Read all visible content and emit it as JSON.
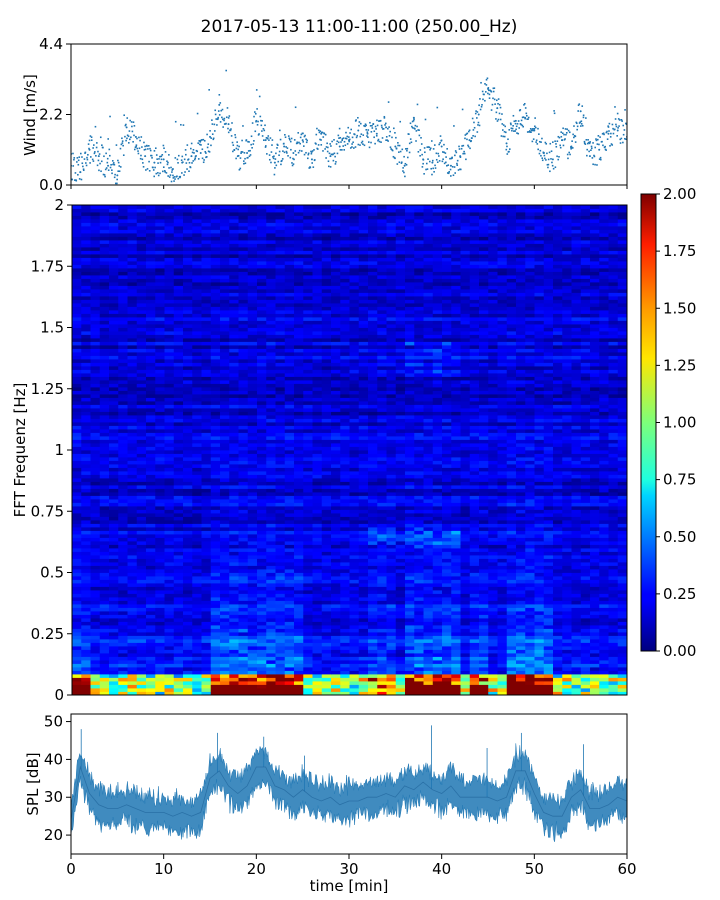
{
  "title": "2017-05-13 11:00-11:00 (250.00_Hz)",
  "chart_data": [
    {
      "id": "wind",
      "type": "scatter",
      "ylabel": "Wind [m/s]",
      "xlabel": "",
      "xlim": [
        0,
        60
      ],
      "ylim": [
        0.0,
        4.4
      ],
      "yticks": [
        "0.0",
        "2.2",
        "4.4"
      ],
      "color": "#1f77b4",
      "points": [
        [
          0,
          0.6
        ],
        [
          1,
          0.4
        ],
        [
          2,
          1.1
        ],
        [
          3,
          0.9
        ],
        [
          4,
          0.6
        ],
        [
          5,
          0.3
        ],
        [
          6,
          1.8
        ],
        [
          7,
          1.5
        ],
        [
          8,
          0.9
        ],
        [
          9,
          0.7
        ],
        [
          10,
          0.8
        ],
        [
          11,
          0.5
        ],
        [
          12,
          0.7
        ],
        [
          13,
          0.9
        ],
        [
          14,
          1.0
        ],
        [
          15,
          1.5
        ],
        [
          16,
          2.5
        ],
        [
          17,
          1.9
        ],
        [
          18,
          0.9
        ],
        [
          19,
          1.0
        ],
        [
          20,
          2.0
        ],
        [
          21,
          1.4
        ],
        [
          22,
          0.7
        ],
        [
          23,
          1.2
        ],
        [
          24,
          1.0
        ],
        [
          25,
          1.4
        ],
        [
          26,
          0.8
        ],
        [
          27,
          1.6
        ],
        [
          28,
          0.9
        ],
        [
          29,
          1.2
        ],
        [
          30,
          1.4
        ],
        [
          31,
          1.7
        ],
        [
          32,
          1.6
        ],
        [
          33,
          1.6
        ],
        [
          34,
          1.8
        ],
        [
          35,
          1.2
        ],
        [
          36,
          0.6
        ],
        [
          37,
          2.1
        ],
        [
          38,
          0.8
        ],
        [
          39,
          0.7
        ],
        [
          40,
          1.2
        ],
        [
          41,
          0.6
        ],
        [
          42,
          0.9
        ],
        [
          43,
          1.4
        ],
        [
          44,
          2.2
        ],
        [
          45,
          3.0
        ],
        [
          46,
          2.4
        ],
        [
          47,
          1.3
        ],
        [
          48,
          2.0
        ],
        [
          49,
          2.1
        ],
        [
          50,
          1.7
        ],
        [
          51,
          1.0
        ],
        [
          52,
          0.8
        ],
        [
          53,
          1.4
        ],
        [
          54,
          1.2
        ],
        [
          55,
          2.3
        ],
        [
          56,
          0.9
        ],
        [
          57,
          1.1
        ],
        [
          58,
          1.6
        ],
        [
          59,
          1.7
        ],
        [
          60,
          1.5
        ]
      ]
    },
    {
      "id": "spectrogram",
      "type": "heatmap",
      "ylabel": "FFT Frequenz [Hz]",
      "xlabel": "",
      "xlim": [
        0,
        60
      ],
      "ylim": [
        0,
        2
      ],
      "yticks": [
        "0",
        "0.25",
        "0.5",
        "0.75",
        "1",
        "1.25",
        "1.5",
        "1.75",
        "2"
      ],
      "colormap": "jet",
      "colorbar": {
        "range": [
          0.0,
          2.0
        ],
        "ticks": [
          "0.00",
          "0.25",
          "0.50",
          "0.75",
          "1.00",
          "1.25",
          "1.50",
          "1.75",
          "2.00"
        ]
      }
    },
    {
      "id": "spl",
      "type": "area",
      "ylabel": "SPL [dB]",
      "xlabel": "time [min]",
      "xlim": [
        0,
        60
      ],
      "ylim": [
        15,
        52
      ],
      "yticks": [
        "20",
        "30",
        "40",
        "50"
      ],
      "xticks": [
        "0",
        "10",
        "20",
        "30",
        "40",
        "50",
        "60"
      ],
      "color": "#1f77b4",
      "mean": [
        [
          0,
          24
        ],
        [
          1,
          38
        ],
        [
          2,
          31
        ],
        [
          3,
          28
        ],
        [
          4,
          27
        ],
        [
          5,
          27
        ],
        [
          6,
          28
        ],
        [
          7,
          27
        ],
        [
          8,
          26
        ],
        [
          9,
          26
        ],
        [
          10,
          26
        ],
        [
          11,
          25
        ],
        [
          12,
          26
        ],
        [
          13,
          25
        ],
        [
          14,
          26
        ],
        [
          15,
          35
        ],
        [
          16,
          37
        ],
        [
          17,
          33
        ],
        [
          18,
          31
        ],
        [
          19,
          33
        ],
        [
          20,
          38
        ],
        [
          21,
          38
        ],
        [
          22,
          33
        ],
        [
          23,
          32
        ],
        [
          24,
          30
        ],
        [
          25,
          32
        ],
        [
          26,
          30
        ],
        [
          27,
          29
        ],
        [
          28,
          30
        ],
        [
          29,
          28
        ],
        [
          30,
          29
        ],
        [
          31,
          29
        ],
        [
          32,
          30
        ],
        [
          33,
          30
        ],
        [
          34,
          31
        ],
        [
          35,
          30
        ],
        [
          36,
          33
        ],
        [
          37,
          32
        ],
        [
          38,
          34
        ],
        [
          39,
          32
        ],
        [
          40,
          31
        ],
        [
          41,
          33
        ],
        [
          42,
          30
        ],
        [
          43,
          30
        ],
        [
          44,
          30
        ],
        [
          45,
          30
        ],
        [
          46,
          29
        ],
        [
          47,
          30
        ],
        [
          48,
          37
        ],
        [
          49,
          37
        ],
        [
          50,
          31
        ],
        [
          51,
          26
        ],
        [
          52,
          25
        ],
        [
          53,
          25
        ],
        [
          54,
          30
        ],
        [
          55,
          32
        ],
        [
          56,
          27
        ],
        [
          57,
          27
        ],
        [
          58,
          28
        ],
        [
          59,
          30
        ],
        [
          60,
          29
        ]
      ]
    }
  ]
}
